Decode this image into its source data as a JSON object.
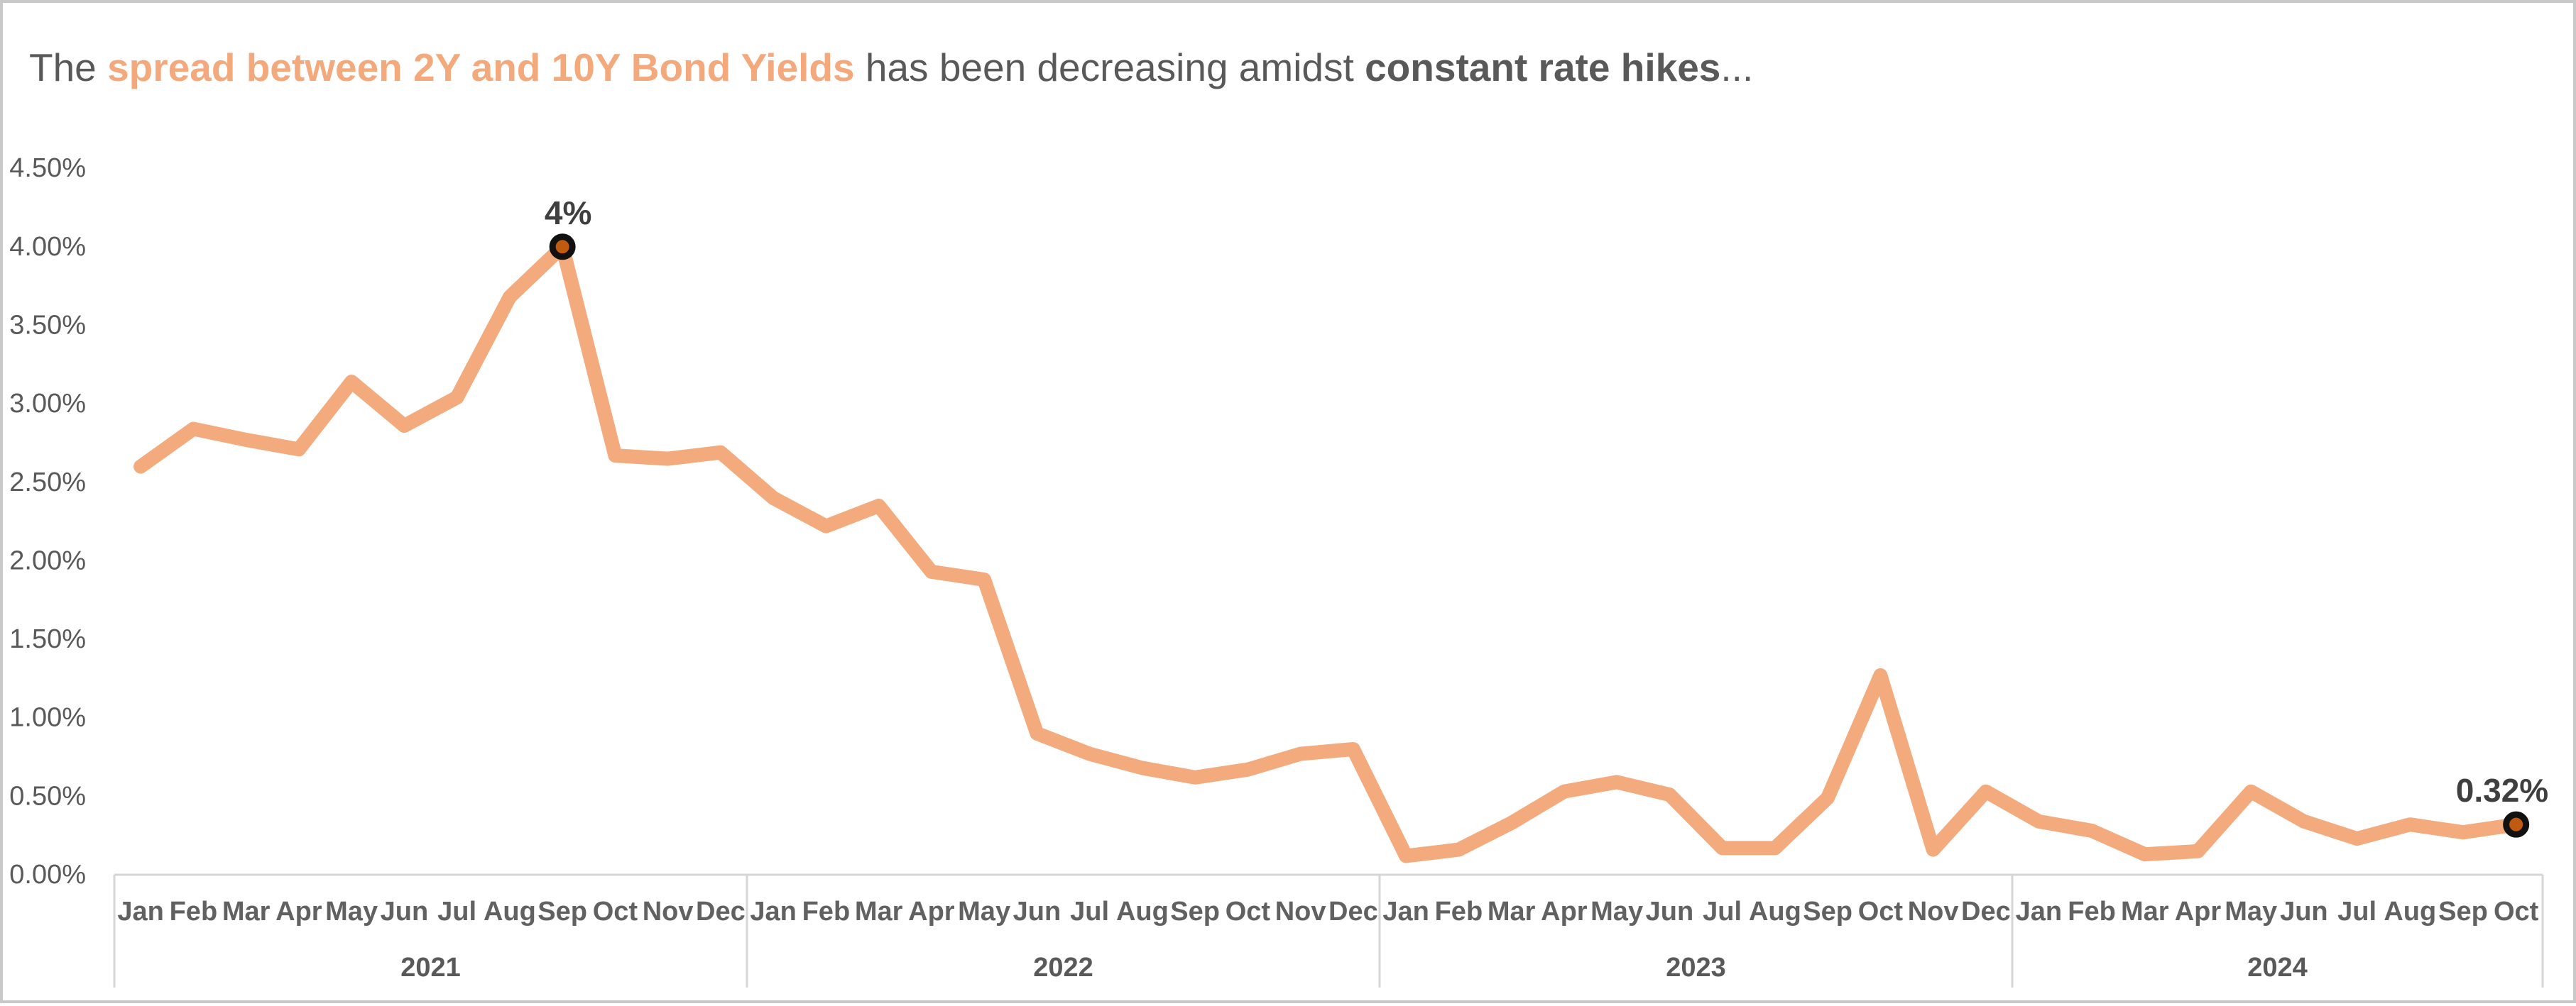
{
  "title": {
    "prefix": "The ",
    "highlight": "spread between 2Y and 10Y Bond Yields",
    "middle": " has been decreasing amidst ",
    "bold": "constant rate hikes",
    "suffix": "...",
    "text_color": "#595959",
    "highlight_color": "#F4A97C"
  },
  "frame": {
    "background": "#ffffff",
    "border_color": "#c9c9c9"
  },
  "chart_data": {
    "type": "line",
    "title": "The spread between 2Y and 10Y Bond Yields has been decreasing amidst constant rate hikes...",
    "unit": "%",
    "ylim": [
      0,
      4.5
    ],
    "y_tick_step": 0.5,
    "y_ticks": [
      "4.50%",
      "4.00%",
      "3.50%",
      "3.00%",
      "2.50%",
      "2.00%",
      "1.50%",
      "1.00%",
      "0.50%",
      "0.00%"
    ],
    "grid": "off",
    "legend": "none",
    "years": [
      {
        "label": "2021",
        "months": [
          "Jan",
          "Feb",
          "Mar",
          "Apr",
          "May",
          "Jun",
          "Jul",
          "Aug",
          "Sep",
          "Oct",
          "Nov",
          "Dec"
        ],
        "values": [
          2.6,
          2.84,
          2.77,
          2.71,
          3.14,
          2.86,
          3.04,
          3.68,
          4.0,
          2.67,
          2.65,
          2.69
        ]
      },
      {
        "label": "2022",
        "months": [
          "Jan",
          "Feb",
          "Mar",
          "Apr",
          "May",
          "Jun",
          "Jul",
          "Aug",
          "Sep",
          "Oct",
          "Nov",
          "Dec"
        ],
        "values": [
          2.4,
          2.22,
          2.35,
          1.93,
          1.88,
          0.9,
          0.77,
          0.68,
          0.62,
          0.67,
          0.77,
          0.8
        ]
      },
      {
        "label": "2023",
        "months": [
          "Jan",
          "Feb",
          "Mar",
          "Apr",
          "May",
          "Jun",
          "Jul",
          "Aug",
          "Sep",
          "Oct",
          "Nov",
          "Dec"
        ],
        "values": [
          0.12,
          0.16,
          0.33,
          0.53,
          0.59,
          0.51,
          0.17,
          0.17,
          0.49,
          1.27,
          0.16,
          0.53
        ]
      },
      {
        "label": "2024",
        "months": [
          "Jan",
          "Feb",
          "Mar",
          "Apr",
          "May",
          "Jun",
          "Jul",
          "Aug",
          "Sep",
          "Oct"
        ],
        "values": [
          0.34,
          0.28,
          0.13,
          0.15,
          0.53,
          0.34,
          0.23,
          0.32,
          0.27,
          0.32
        ]
      }
    ],
    "annotations": [
      {
        "index": 8,
        "point": "Sep 2021",
        "label": "4%",
        "value": 4.0
      },
      {
        "index": 45,
        "point": "Oct 2024",
        "label": "0.32%",
        "value": 0.32
      }
    ],
    "colors": {
      "line": "#F3AB7D",
      "marker_fill": "#C05A11",
      "marker_stroke": "#111111",
      "axis": "#D6D6D6",
      "tick_label": "#595959",
      "month_label": "#616161",
      "year_label": "#595959",
      "annotation": "#3F3F3F"
    }
  }
}
